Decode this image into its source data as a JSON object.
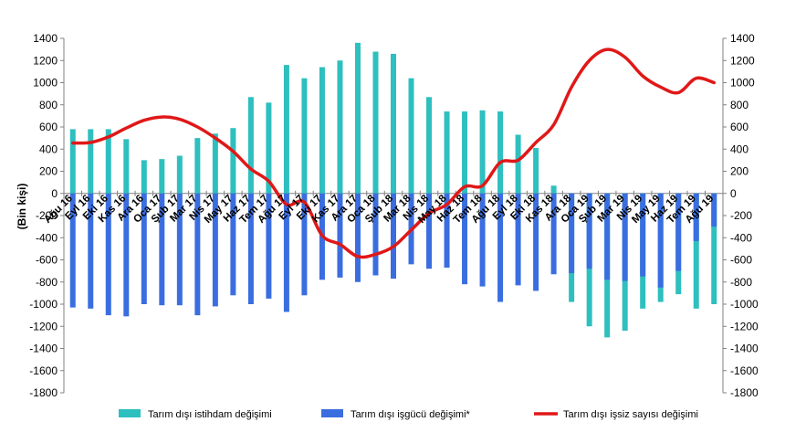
{
  "chart_data": {
    "type": "bar+line",
    "ylabel": "(Bin kişi)",
    "ylim": [
      -1800,
      1400
    ],
    "yticks": [
      1400,
      1200,
      1000,
      800,
      600,
      400,
      200,
      0,
      -200,
      -400,
      -600,
      -800,
      -1000,
      -1200,
      -1400,
      -1600,
      -1800
    ],
    "grid": false,
    "legend_placement": "bottom",
    "categories": [
      "Ağu 16",
      "Eyl 16",
      "Eki 16",
      "Kas 16",
      "Ara 16",
      "Oca 17",
      "Şub 17",
      "Mar 17",
      "Nis 17",
      "May 17",
      "Haz 17",
      "Tem 17",
      "Ağu 17",
      "Eyl 17",
      "Eki 17",
      "Kas 17",
      "Ara 17",
      "Oca 18",
      "Şub 18",
      "Mar 18",
      "Nis 18",
      "May 18",
      "Haz 18",
      "Tem 18",
      "Ağu 18",
      "Eyl 18",
      "Eki 18",
      "Kas 18",
      "Ara 18",
      "Oca 19",
      "Şub 19",
      "Mar 19",
      "Nis 19",
      "May 19",
      "Haz 19",
      "Tem 19",
      "Ağu 19"
    ],
    "series": [
      {
        "name": "Tarım dışı istihdam değişimi",
        "kind": "bar",
        "color": "#2ebfbf",
        "values": [
          580,
          580,
          580,
          490,
          300,
          310,
          340,
          500,
          540,
          590,
          870,
          820,
          1160,
          1040,
          1140,
          1200,
          1360,
          1280,
          1260,
          1040,
          870,
          740,
          740,
          750,
          740,
          530,
          410,
          70,
          -980,
          -1200,
          -1300,
          -1240,
          -1040,
          -980,
          -910,
          -1040,
          -1000
        ]
      },
      {
        "name": "Tarım dışı işgücü değişimi*",
        "kind": "bar",
        "color": "#3a6ee0",
        "values": [
          -1030,
          -1040,
          -1100,
          -1110,
          -1000,
          -1010,
          -1010,
          -1100,
          -1020,
          -920,
          -1000,
          -950,
          -1070,
          -920,
          -780,
          -760,
          -800,
          -740,
          -770,
          -640,
          -680,
          -670,
          -820,
          -840,
          -980,
          -830,
          -880,
          -730,
          -720,
          -680,
          -780,
          -790,
          -750,
          -850,
          -700,
          -430,
          -300
        ]
      },
      {
        "name": "Tarım dışı işsiz sayısı değişimi",
        "kind": "line",
        "color": "#e01818",
        "values": [
          455,
          460,
          510,
          590,
          660,
          690,
          670,
          600,
          500,
          380,
          220,
          110,
          -100,
          -80,
          -380,
          -460,
          -570,
          -550,
          -480,
          -330,
          -180,
          -100,
          60,
          70,
          280,
          300,
          460,
          620,
          960,
          1200,
          1300,
          1230,
          1060,
          960,
          910,
          1040,
          1000
        ]
      }
    ]
  }
}
